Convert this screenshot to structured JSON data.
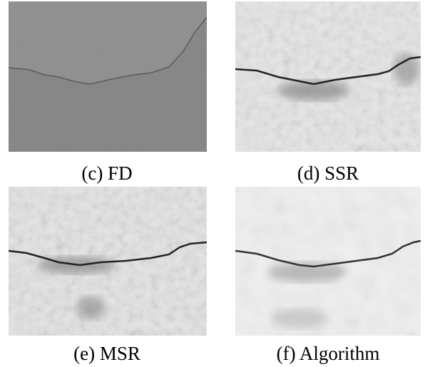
{
  "figure": {
    "panels": [
      {
        "caption": "(c) FD"
      },
      {
        "caption": "(d) SSR"
      },
      {
        "caption": "(e) MSR"
      },
      {
        "caption": "(f) Algorithm"
      }
    ]
  }
}
